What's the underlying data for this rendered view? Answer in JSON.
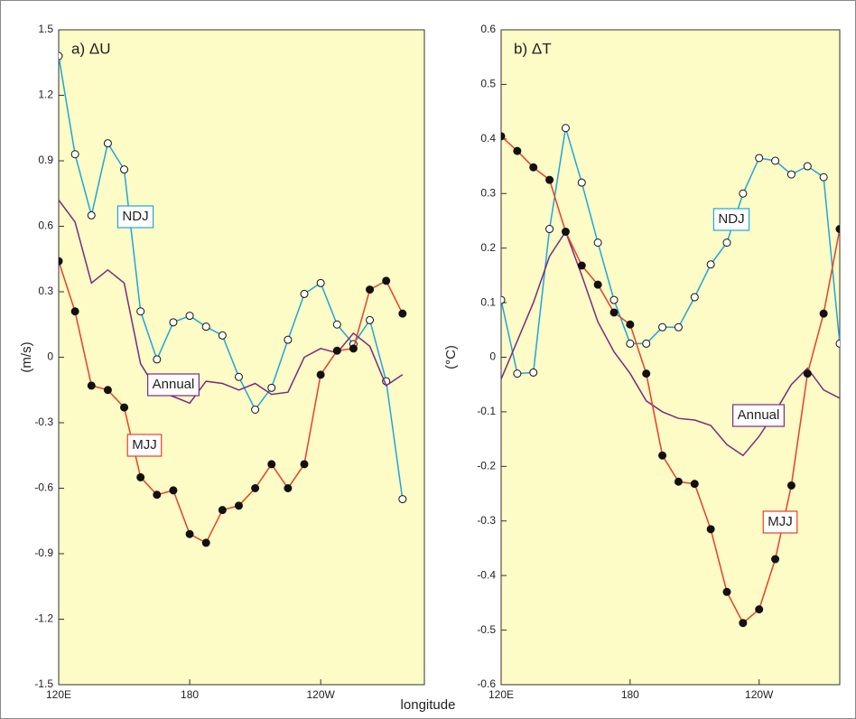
{
  "chart_data": [
    {
      "type": "line",
      "title": "a)  ΔU",
      "ylabel": "(m/s)",
      "x": [
        120,
        127.5,
        135,
        142.5,
        150,
        157.5,
        165,
        172.5,
        180,
        187.5,
        195,
        202.5,
        210,
        217.5,
        225,
        232.5,
        240,
        247.5,
        255,
        262.5,
        270,
        277.5
      ],
      "xlim": [
        120,
        287.5
      ],
      "xticks": [
        {
          "value": 120,
          "label": "120E"
        },
        180,
        {
          "value": 240,
          "label": "120W"
        }
      ],
      "ylim": [
        -1.5,
        1.5
      ],
      "yticks": [
        1.5,
        1.2,
        0.9,
        0.6,
        0.3,
        0,
        -0.3,
        -0.6,
        -0.9,
        -1.2,
        -1.5
      ],
      "series": [
        {
          "name": "NDJ",
          "color": "#1ea6dc",
          "marker": "open",
          "values": [
            1.38,
            0.93,
            0.65,
            0.98,
            0.86,
            0.21,
            -0.01,
            0.16,
            0.19,
            0.14,
            0.1,
            -0.09,
            -0.24,
            -0.14,
            0.08,
            0.29,
            0.34,
            0.15,
            0.06,
            0.17,
            -0.11,
            -0.65
          ]
        },
        {
          "name": "Annual",
          "color": "#7b2a80",
          "marker": "none",
          "values": [
            0.72,
            0.62,
            0.34,
            0.4,
            0.34,
            -0.03,
            -0.15,
            -0.18,
            -0.21,
            -0.11,
            -0.12,
            -0.15,
            -0.12,
            -0.17,
            -0.16,
            0.0,
            0.04,
            0.02,
            0.11,
            0.05,
            -0.13,
            -0.08
          ]
        },
        {
          "name": "MJJ",
          "color": "#e8402a",
          "marker": "filled",
          "values": [
            0.44,
            0.21,
            -0.13,
            -0.15,
            -0.23,
            -0.55,
            -0.63,
            -0.61,
            -0.81,
            -0.85,
            -0.7,
            -0.68,
            -0.6,
            -0.49,
            -0.6,
            -0.49,
            -0.08,
            0.03,
            0.04,
            0.31,
            0.35,
            0.2
          ]
        }
      ]
    },
    {
      "type": "line",
      "title": "b)  ΔT",
      "ylabel": "(°C)",
      "x": [
        120,
        127.5,
        135,
        142.5,
        150,
        157.5,
        165,
        172.5,
        180,
        187.5,
        195,
        202.5,
        210,
        217.5,
        225,
        232.5,
        240,
        247.5,
        255,
        262.5,
        270,
        277.5
      ],
      "xlim": [
        120,
        277.5
      ],
      "xticks": [
        {
          "value": 120,
          "label": "120E"
        },
        180,
        {
          "value": 240,
          "label": "120W"
        }
      ],
      "ylim": [
        -0.6,
        0.6
      ],
      "yticks": [
        0.6,
        0.5,
        0.4,
        0.3,
        0.2,
        0.1,
        0,
        -0.1,
        -0.2,
        -0.3,
        -0.4,
        -0.5,
        -0.6
      ],
      "series": [
        {
          "name": "NDJ",
          "color": "#1ea6dc",
          "marker": "open",
          "values": [
            0.105,
            -0.03,
            -0.028,
            0.235,
            0.42,
            0.32,
            0.21,
            0.105,
            0.025,
            0.025,
            0.055,
            0.055,
            0.11,
            0.17,
            0.21,
            0.3,
            0.365,
            0.36,
            0.335,
            0.35,
            0.33,
            0.025
          ]
        },
        {
          "name": "Annual",
          "color": "#7b2a80",
          "marker": "none",
          "values": [
            -0.04,
            0.03,
            0.1,
            0.185,
            0.23,
            0.15,
            0.065,
            0.01,
            -0.03,
            -0.08,
            -0.1,
            -0.112,
            -0.115,
            -0.125,
            -0.16,
            -0.18,
            -0.145,
            -0.1,
            -0.05,
            -0.02,
            -0.06,
            -0.075
          ]
        },
        {
          "name": "MJJ",
          "color": "#e8402a",
          "marker": "filled",
          "values": [
            0.405,
            0.378,
            0.348,
            0.325,
            0.23,
            0.168,
            0.133,
            0.082,
            0.06,
            -0.03,
            -0.18,
            -0.228,
            -0.232,
            -0.315,
            -0.43,
            -0.487,
            -0.462,
            -0.37,
            -0.235,
            -0.03,
            0.08,
            0.235
          ]
        }
      ]
    }
  ],
  "xlabel": "longitude"
}
